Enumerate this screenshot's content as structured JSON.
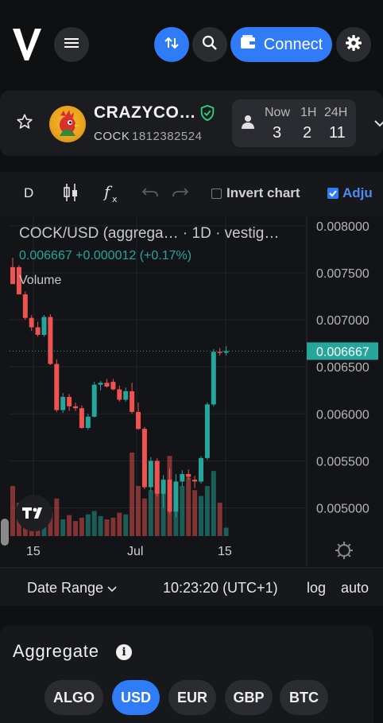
{
  "header": {
    "connect_label": "Connect",
    "icons": [
      "v-logo",
      "menu-icon",
      "swap-icon",
      "search-icon",
      "wallet-icon",
      "gear-icon"
    ]
  },
  "token": {
    "name": "CRAZYCO…",
    "symbol": "COCK",
    "asset_id": "1812382524",
    "verified": true,
    "stats": {
      "headers": [
        "Now",
        "1H",
        "24H"
      ],
      "values": [
        "3",
        "2",
        "11"
      ]
    }
  },
  "toolbar": {
    "interval": "D",
    "invert_label": "Invert chart",
    "invert_checked": false,
    "adjust_label": "Adju",
    "adjust_checked": true
  },
  "chart": {
    "legend_title": "COCK/USD (aggrega… · 1D · vestig…",
    "legend_values": "0.006667 +0.000012 (+0.17%)",
    "volume_label": "Volume",
    "price_labels": [
      "0.008000",
      "0.007500",
      "0.007000",
      "0.006500",
      "0.006000",
      "0.005500",
      "0.005000"
    ],
    "last_price_label": "0.006667",
    "x_labels": [
      "15",
      "Jul",
      "15"
    ]
  },
  "chart_data": {
    "type": "candlestick",
    "title": "COCK/USD (aggrega… · 1D · vestig…",
    "ylim": [
      0.0047,
      0.0081
    ],
    "last_price": 0.006667,
    "up_color": "#26a69a",
    "down_color": "#ef5350",
    "candles": [
      {
        "o": 0.00756,
        "h": 0.00766,
        "l": 0.00738,
        "c": 0.00738
      },
      {
        "o": 0.00756,
        "h": 0.00758,
        "l": 0.00727,
        "c": 0.00727
      },
      {
        "o": 0.00727,
        "h": 0.0073,
        "l": 0.007,
        "c": 0.00702
      },
      {
        "o": 0.00702,
        "h": 0.00705,
        "l": 0.00688,
        "c": 0.00692
      },
      {
        "o": 0.00692,
        "h": 0.00698,
        "l": 0.00682,
        "c": 0.00684
      },
      {
        "o": 0.00684,
        "h": 0.00705,
        "l": 0.00682,
        "c": 0.00703
      },
      {
        "o": 0.00703,
        "h": 0.00706,
        "l": 0.00652,
        "c": 0.00653
      },
      {
        "o": 0.00653,
        "h": 0.00658,
        "l": 0.00602,
        "c": 0.00604
      },
      {
        "o": 0.00604,
        "h": 0.00622,
        "l": 0.00601,
        "c": 0.00618
      },
      {
        "o": 0.00618,
        "h": 0.00621,
        "l": 0.00603,
        "c": 0.00608
      },
      {
        "o": 0.00608,
        "h": 0.00612,
        "l": 0.00603,
        "c": 0.00606
      },
      {
        "o": 0.00606,
        "h": 0.00609,
        "l": 0.00584,
        "c": 0.00585
      },
      {
        "o": 0.00585,
        "h": 0.006,
        "l": 0.00583,
        "c": 0.00597
      },
      {
        "o": 0.00597,
        "h": 0.00634,
        "l": 0.00596,
        "c": 0.00631
      },
      {
        "o": 0.00631,
        "h": 0.00635,
        "l": 0.00625,
        "c": 0.00633
      },
      {
        "o": 0.00633,
        "h": 0.00637,
        "l": 0.00628,
        "c": 0.00629
      },
      {
        "o": 0.00634,
        "h": 0.00637,
        "l": 0.00625,
        "c": 0.00626
      },
      {
        "o": 0.00626,
        "h": 0.0063,
        "l": 0.00613,
        "c": 0.00615
      },
      {
        "o": 0.00615,
        "h": 0.00628,
        "l": 0.00613,
        "c": 0.00624
      },
      {
        "o": 0.00624,
        "h": 0.00633,
        "l": 0.006,
        "c": 0.00602
      },
      {
        "o": 0.00602,
        "h": 0.00612,
        "l": 0.00583,
        "c": 0.00584
      },
      {
        "o": 0.00584,
        "h": 0.00586,
        "l": 0.0052,
        "c": 0.00522
      },
      {
        "o": 0.00522,
        "h": 0.00554,
        "l": 0.00518,
        "c": 0.0055
      },
      {
        "o": 0.0055,
        "h": 0.00553,
        "l": 0.00512,
        "c": 0.00515
      },
      {
        "o": 0.00515,
        "h": 0.00535,
        "l": 0.005,
        "c": 0.0053
      },
      {
        "o": 0.0053,
        "h": 0.00542,
        "l": 0.00494,
        "c": 0.00496
      },
      {
        "o": 0.00496,
        "h": 0.00536,
        "l": 0.0049,
        "c": 0.00528
      },
      {
        "o": 0.00528,
        "h": 0.0054,
        "l": 0.00523,
        "c": 0.00536
      },
      {
        "o": 0.00536,
        "h": 0.00541,
        "l": 0.0053,
        "c": 0.00533
      },
      {
        "o": 0.0053,
        "h": 0.00534,
        "l": 0.00521,
        "c": 0.00528
      },
      {
        "o": 0.00528,
        "h": 0.00555,
        "l": 0.00526,
        "c": 0.00553
      },
      {
        "o": 0.00553,
        "h": 0.00612,
        "l": 0.00551,
        "c": 0.0061
      },
      {
        "o": 0.0061,
        "h": 0.00669,
        "l": 0.00608,
        "c": 0.00666
      },
      {
        "o": 0.00666,
        "h": 0.0067,
        "l": 0.00662,
        "c": 0.00665
      },
      {
        "o": 0.00665,
        "h": 0.00672,
        "l": 0.00662,
        "c": 0.006667
      }
    ],
    "volume": [
      60,
      40,
      20,
      25,
      18,
      22,
      30,
      45,
      20,
      25,
      18,
      22,
      26,
      30,
      24,
      20,
      22,
      28,
      26,
      100,
      60,
      45,
      55,
      78,
      52,
      96,
      56,
      60,
      70,
      55,
      48,
      60,
      78,
      40,
      10
    ]
  },
  "range_bar": {
    "date_range_label": "Date Range",
    "time": "10:23:20 (UTC+1)",
    "log_label": "log",
    "auto_label": "auto"
  },
  "aggregate": {
    "title": "Aggregate",
    "currencies": [
      "ALGO",
      "USD",
      "EUR",
      "GBP",
      "BTC"
    ],
    "selected": "USD"
  },
  "colors": {
    "accent": "#2f7cf6",
    "up": "#26a69a",
    "down": "#ef5350",
    "verified": "#2bd47c"
  }
}
